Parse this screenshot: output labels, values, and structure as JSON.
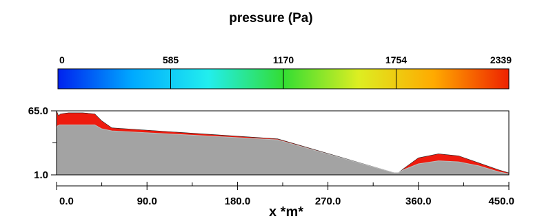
{
  "chart_data": {
    "type": "area",
    "title": "pressure (Pa)",
    "xlabel": "x *m*",
    "ylabel": "",
    "xlim": [
      0,
      450
    ],
    "ylim": [
      1,
      65
    ],
    "x_ticks": [
      "0.0",
      "90.0",
      "180.0",
      "270.0",
      "360.0",
      "450.0"
    ],
    "y_ticks": [
      "65.0",
      "1.0"
    ],
    "colorbar": {
      "label": "pressure (Pa)",
      "min": 0,
      "max": 2339,
      "ticks": [
        "0",
        "585",
        "1170",
        "1754",
        "2339"
      ],
      "colors": [
        "#0022ee",
        "#00aaff",
        "#22eeee",
        "#33dd33",
        "#ddee22",
        "#ffaa00",
        "#ee2200"
      ]
    },
    "series": [
      {
        "x": [
          0,
          1,
          3,
          38,
          45,
          55,
          220,
          336,
          340,
          345,
          360,
          380,
          400,
          420,
          440,
          450
        ],
        "y": [
          47,
          50,
          51,
          51,
          47,
          45,
          36,
          3,
          3,
          6,
          12,
          15,
          14,
          10,
          4,
          2
        ]
      },
      {
        "x": [
          0,
          2,
          4,
          12,
          26,
          38,
          45,
          55,
          220,
          336,
          340,
          345,
          360,
          380,
          400,
          420,
          440,
          450
        ],
        "y": [
          65,
          60,
          62,
          63,
          63,
          62,
          55,
          48,
          37,
          3,
          3,
          7,
          18,
          22,
          20,
          13,
          6,
          3
        ]
      }
    ]
  }
}
